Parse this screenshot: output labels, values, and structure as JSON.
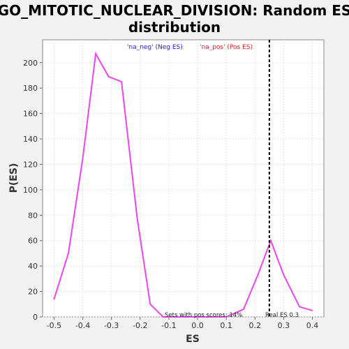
{
  "chart_data": {
    "type": "line",
    "title_line1": "GO_MITOTIC_NUCLEAR_DIVISION: Random ES",
    "title_line2": "distribution",
    "xlabel": "ES",
    "ylabel": "P(ES)",
    "xlim": [
      -0.54,
      0.44
    ],
    "ylim": [
      0,
      218
    ],
    "xticks": [
      -0.5,
      -0.4,
      -0.3,
      -0.2,
      -0.1,
      0.0,
      0.1,
      0.2,
      0.3,
      0.4
    ],
    "xtick_labels": [
      "-0.5",
      "-0.4",
      "-0.3",
      "-0.2",
      "-0.1",
      "0.0",
      "0.1",
      "0.2",
      "0.3",
      "0.4"
    ],
    "yticks": [
      0,
      20,
      40,
      60,
      80,
      100,
      120,
      140,
      160,
      180,
      200
    ],
    "ytick_labels": [
      "0",
      "20",
      "40",
      "60",
      "80",
      "100",
      "120",
      "140",
      "160",
      "180",
      "200"
    ],
    "grid": true,
    "series": [
      {
        "color": "#ee44ee",
        "points": [
          [
            -0.5,
            14
          ],
          [
            -0.45,
            50
          ],
          [
            -0.4,
            125
          ],
          [
            -0.355,
            207
          ],
          [
            -0.31,
            189
          ],
          [
            -0.265,
            185
          ],
          [
            -0.21,
            77
          ],
          [
            -0.165,
            10
          ],
          [
            -0.12,
            0
          ],
          [
            0.0,
            0
          ],
          [
            0.1,
            0
          ],
          [
            0.16,
            6
          ],
          [
            0.21,
            33
          ],
          [
            0.255,
            60
          ],
          [
            0.3,
            33
          ],
          [
            0.355,
            8
          ],
          [
            0.4,
            5
          ]
        ]
      }
    ],
    "real_es_line": {
      "x": 0.25,
      "color": "#000000"
    },
    "legend": [
      {
        "label": "'na_neg' (Neg ES)",
        "color": "#2222dd"
      },
      {
        "label": "'na_pos' (Pos ES)",
        "color": "#ee2222"
      }
    ],
    "annotations": {
      "pos_scores": "Sets with pos scores: 14%",
      "real_es": "Real ES 0.3"
    },
    "colors": {
      "background": "#f2f2f2",
      "plot_background": "#ffffff",
      "grid": "#e4e4e4"
    }
  }
}
